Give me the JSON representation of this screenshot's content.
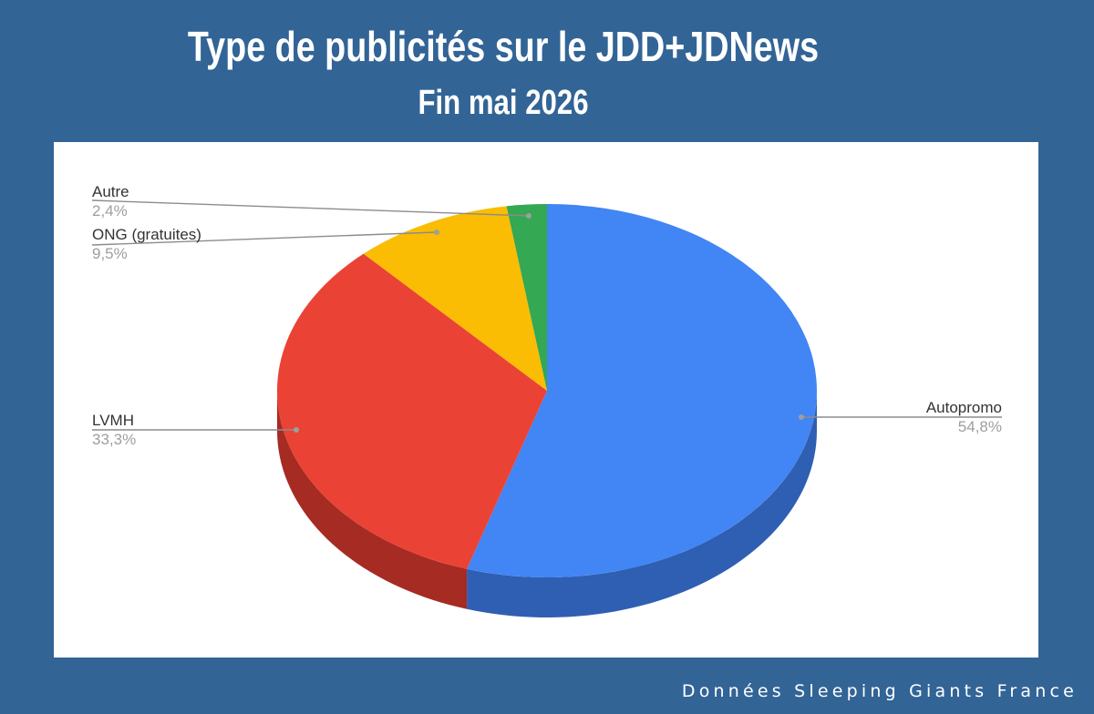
{
  "header": {
    "title": "Type de publicités sur le JDD+JDNews",
    "subtitle": "Fin mai 2026"
  },
  "footer": {
    "source": "Données Sleeping Giants France"
  },
  "chart_data": {
    "type": "pie",
    "style": "3d",
    "start_angle_deg": 0,
    "direction": "clockwise",
    "slices": [
      {
        "label": "Autopromo",
        "value": 54.8,
        "value_label": "54,8%",
        "color": "#4285f4",
        "side_color": "#2f5fb3"
      },
      {
        "label": "LVMH",
        "value": 33.3,
        "value_label": "33,3%",
        "color": "#ea4335",
        "side_color": "#a52b23"
      },
      {
        "label": "ONG (gratuites)",
        "value": 9.5,
        "value_label": "9,5%",
        "color": "#fbbc04",
        "side_color": "#b58600"
      },
      {
        "label": "Autre",
        "value": 2.4,
        "value_label": "2,4%",
        "color": "#34a853",
        "side_color": "#24793a"
      }
    ],
    "legend": "leader-line labels"
  }
}
